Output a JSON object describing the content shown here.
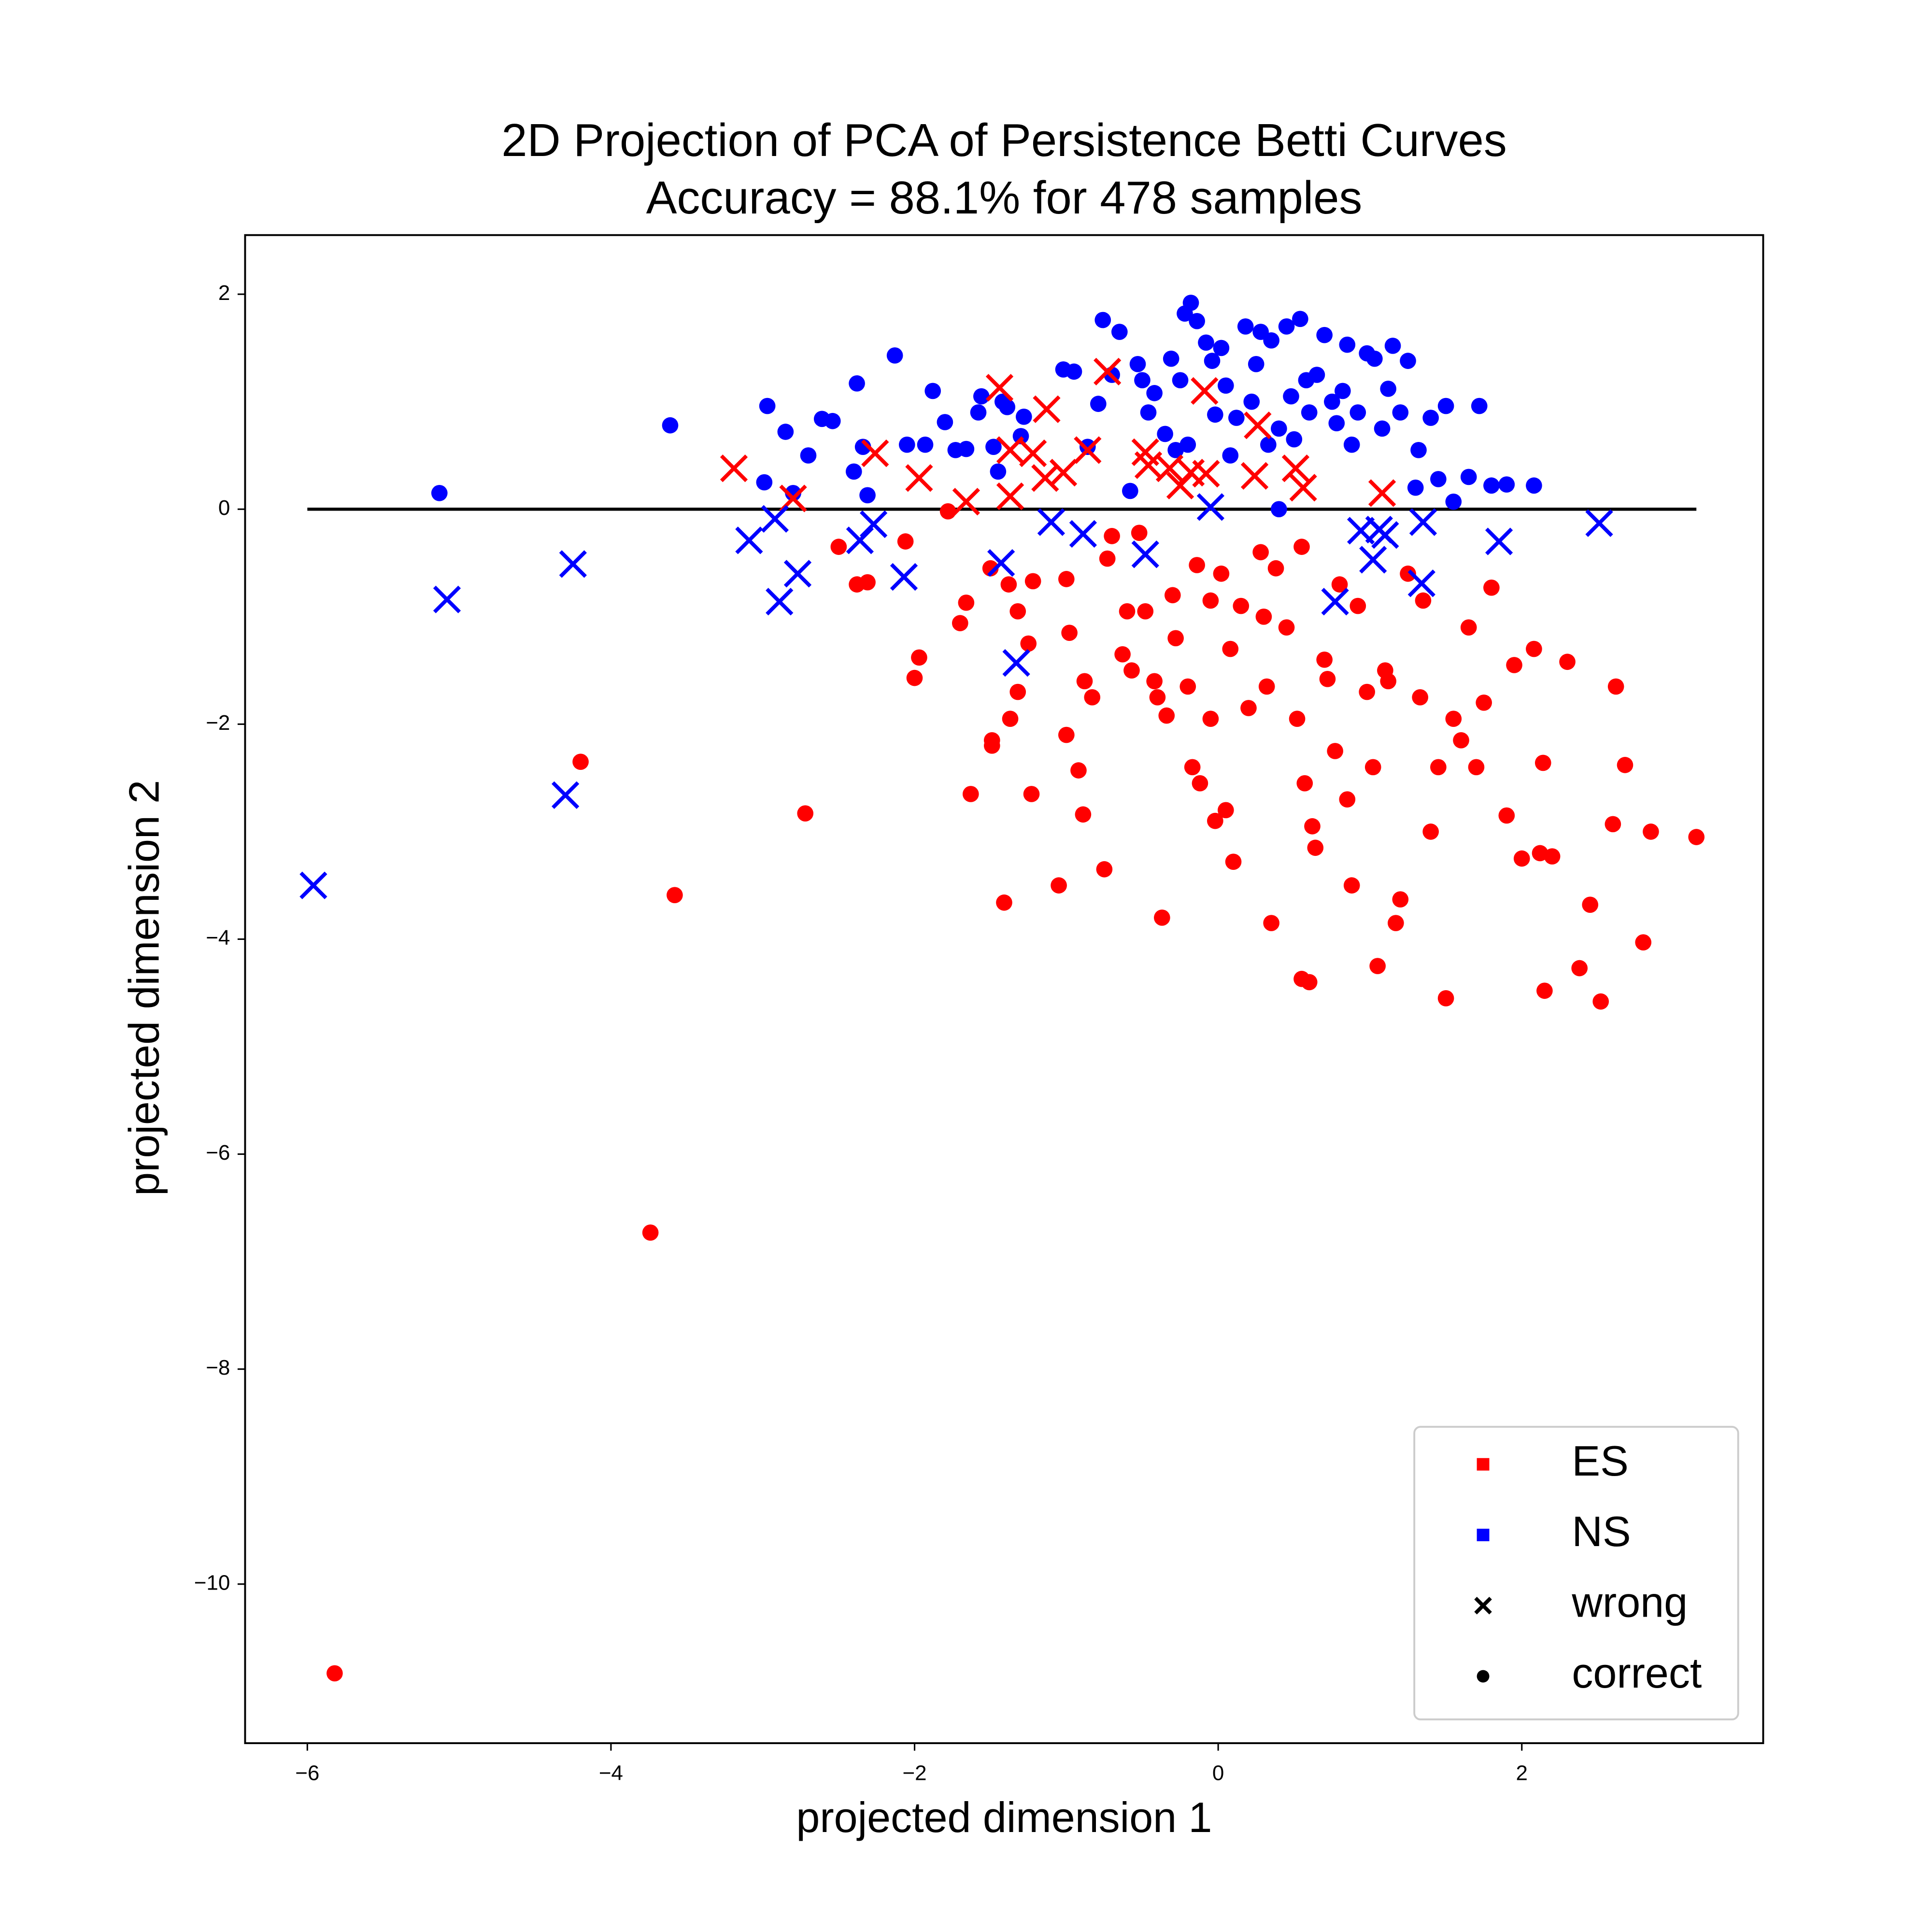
{
  "chart_data": {
    "type": "scatter",
    "title": "2D Projection of PCA of Persistence Betti Curves",
    "subtitle": "Accuracy = 88.1% for 478 samples",
    "x_label": "projected dimension 1",
    "y_label": "projected dimension 2",
    "xlim": [
      -6.41,
      3.59
    ],
    "ylim": [
      -11.48,
      2.55
    ],
    "xticks": [
      {
        "value": -6,
        "label": "−6"
      },
      {
        "value": -4,
        "label": "−4"
      },
      {
        "value": -2,
        "label": "−2"
      },
      0,
      2
    ],
    "yticks": [
      2,
      0,
      {
        "value": -2,
        "label": "−2"
      },
      {
        "value": -4,
        "label": "−4"
      },
      {
        "value": -6,
        "label": "−6"
      },
      {
        "value": -8,
        "label": "−8"
      },
      {
        "value": -10,
        "label": "−10"
      }
    ],
    "reference_line": {
      "y": 0,
      "x": [
        -6,
        3.15
      ],
      "color": "#000000"
    },
    "series": [
      {
        "color": "#ff0000",
        "marker": "o",
        "x": [
          -5.82,
          -3.74,
          -3.58,
          -4.2,
          -2.72,
          -2.5,
          -2.38,
          -2.31,
          -2.06,
          -1.97,
          -2.0,
          -1.78,
          -1.7,
          -1.66,
          -1.63,
          -1.5,
          -1.49,
          -1.49,
          -1.41,
          -1.37,
          -1.38,
          -1.32,
          -1.32,
          -1.25,
          -1.23,
          -1.22,
          -1.05,
          -1.0,
          -1.0,
          -0.98,
          -0.92,
          -0.89,
          -0.88,
          -0.83,
          -0.75,
          -0.73,
          -0.7,
          -0.63,
          -0.6,
          -0.57,
          -0.52,
          -0.48,
          -0.42,
          -0.4,
          -0.37,
          -0.34,
          -0.3,
          -0.28,
          -0.2,
          -0.17,
          -0.14,
          -0.12,
          -0.05,
          -0.02,
          0.02,
          0.05,
          0.08,
          0.1,
          0.15,
          0.2,
          0.28,
          0.32,
          0.35,
          0.38,
          0.45,
          0.52,
          0.55,
          0.57,
          0.6,
          0.62,
          0.64,
          0.7,
          0.77,
          0.8,
          0.85,
          0.88,
          0.92,
          0.98,
          1.02,
          1.05,
          1.1,
          1.17,
          1.2,
          1.25,
          1.33,
          1.4,
          1.45,
          1.5,
          1.55,
          1.6,
          1.65,
          1.7,
          1.75,
          1.8,
          1.9,
          1.95,
          2.0,
          2.08,
          2.12,
          2.15,
          2.2,
          2.3,
          2.38,
          2.45,
          2.52,
          2.6,
          2.62,
          2.68,
          2.8,
          2.85,
          3.15,
          1.35,
          0.55,
          -0.05,
          0.3,
          0.72,
          1.12,
          2.14
        ],
        "values": [
          -10.83,
          -6.73,
          -3.59,
          -2.35,
          -2.83,
          -0.35,
          -0.7,
          -0.68,
          -0.3,
          -1.38,
          -1.57,
          -0.02,
          -1.06,
          -0.87,
          -2.65,
          -0.55,
          -2.15,
          -2.2,
          -3.66,
          -1.95,
          -0.7,
          -0.95,
          -1.7,
          -1.25,
          -2.65,
          -0.67,
          -3.5,
          -0.65,
          -2.1,
          -1.15,
          -2.43,
          -2.84,
          -1.6,
          -1.75,
          -3.35,
          -0.46,
          -0.25,
          -1.35,
          -0.95,
          -1.5,
          -0.22,
          -0.95,
          -1.6,
          -1.75,
          -3.8,
          -1.92,
          -0.8,
          -1.2,
          -1.65,
          -2.4,
          -0.52,
          -2.55,
          -1.95,
          -2.9,
          -0.6,
          -2.8,
          -1.3,
          -3.28,
          -0.9,
          -1.85,
          -0.4,
          -1.65,
          -3.85,
          -0.55,
          -1.1,
          -1.95,
          -4.37,
          -2.55,
          -4.4,
          -2.95,
          -3.15,
          -1.4,
          -2.25,
          -0.7,
          -2.7,
          -3.5,
          -0.9,
          -1.7,
          -2.4,
          -4.25,
          -1.5,
          -3.85,
          -3.63,
          -0.6,
          -1.75,
          -3.0,
          -2.4,
          -4.55,
          -1.95,
          -2.15,
          -1.1,
          -2.4,
          -1.8,
          -0.73,
          -2.85,
          -1.45,
          -3.25,
          -1.3,
          -3.2,
          -4.48,
          -3.23,
          -1.42,
          -4.27,
          -3.68,
          -4.58,
          -2.93,
          -1.65,
          -2.38,
          -4.03,
          -3.0,
          -3.05,
          -0.85,
          -0.35,
          -0.85,
          -1.0,
          -1.58,
          -1.6,
          -2.36
        ]
      },
      {
        "color": "#0000ff",
        "marker": "o",
        "x": [
          -5.13,
          -3.61,
          -2.97,
          -2.99,
          -2.85,
          -2.8,
          -2.7,
          -2.61,
          -2.54,
          -2.4,
          -2.38,
          -2.34,
          -2.31,
          -2.13,
          -2.05,
          -1.93,
          -1.88,
          -1.8,
          -1.73,
          -1.66,
          -1.58,
          -1.56,
          -1.48,
          -1.45,
          -1.42,
          -1.39,
          -1.28,
          -1.3,
          -1.02,
          -0.95,
          -0.86,
          -0.79,
          -0.76,
          -0.65,
          -0.7,
          -0.53,
          -0.5,
          -0.46,
          -0.42,
          -0.35,
          -0.31,
          -0.25,
          -0.22,
          -0.2,
          -0.18,
          -0.14,
          -0.08,
          -0.04,
          -0.02,
          0.02,
          0.05,
          0.08,
          0.12,
          0.18,
          0.22,
          0.25,
          0.28,
          0.33,
          0.35,
          0.4,
          0.45,
          0.48,
          0.5,
          0.54,
          0.58,
          0.6,
          0.65,
          0.7,
          0.75,
          0.78,
          0.82,
          0.85,
          0.88,
          0.92,
          0.98,
          1.03,
          1.08,
          1.12,
          1.15,
          1.2,
          1.25,
          1.3,
          1.32,
          1.4,
          1.45,
          1.5,
          1.55,
          1.65,
          1.72,
          1.8,
          1.9,
          2.08,
          0.4,
          -0.58,
          -0.28
        ],
        "values": [
          0.15,
          0.78,
          0.96,
          0.25,
          0.72,
          0.15,
          0.5,
          0.84,
          0.82,
          0.35,
          1.17,
          0.58,
          0.13,
          1.43,
          0.6,
          0.6,
          1.1,
          0.81,
          0.55,
          0.56,
          0.9,
          1.05,
          0.58,
          0.35,
          1.0,
          0.95,
          0.86,
          0.68,
          1.3,
          1.28,
          0.58,
          0.98,
          1.76,
          1.65,
          1.25,
          1.35,
          1.2,
          0.9,
          1.08,
          0.7,
          1.4,
          1.2,
          1.82,
          0.6,
          1.92,
          1.75,
          1.55,
          1.38,
          0.88,
          1.5,
          1.15,
          0.5,
          0.85,
          1.7,
          1.0,
          1.35,
          1.65,
          0.6,
          1.57,
          0.75,
          1.7,
          1.05,
          0.65,
          1.77,
          1.2,
          0.9,
          1.25,
          1.62,
          1.0,
          0.8,
          1.1,
          1.53,
          0.6,
          0.9,
          1.45,
          1.4,
          0.75,
          1.12,
          1.52,
          0.9,
          1.38,
          0.2,
          0.55,
          0.85,
          0.28,
          0.96,
          0.07,
          0.3,
          0.96,
          0.22,
          0.23,
          0.22,
          0.0,
          0.17,
          0.55
        ]
      },
      {
        "color": "#ff0000",
        "marker": "x",
        "x": [
          -3.19,
          -2.8,
          -2.26,
          -1.97,
          -1.66,
          -1.44,
          -1.37,
          -1.37,
          -1.22,
          -1.13,
          -1.14,
          -1.02,
          -0.86,
          -0.73,
          -0.48,
          -0.46,
          -0.32,
          -0.25,
          -0.18,
          -0.08,
          -0.09,
          0.24,
          0.26,
          0.51,
          0.56,
          1.08
        ],
        "values": [
          0.38,
          0.1,
          0.52,
          0.29,
          0.07,
          1.13,
          0.55,
          0.12,
          0.52,
          0.93,
          0.29,
          0.34,
          0.55,
          1.28,
          0.53,
          0.41,
          0.38,
          0.22,
          0.34,
          0.33,
          1.1,
          0.31,
          0.78,
          0.38,
          0.2,
          0.15
        ]
      },
      {
        "color": "#0000ff",
        "marker": "x",
        "x": [
          -5.96,
          -5.08,
          -4.25,
          -4.3,
          -3.09,
          -2.92,
          -2.89,
          -2.77,
          -2.36,
          -2.27,
          -2.07,
          -1.43,
          -1.33,
          -1.1,
          -0.89,
          -0.48,
          -0.05,
          0.77,
          0.94,
          1.02,
          1.06,
          1.1,
          1.34,
          1.35,
          1.85,
          2.51
        ],
        "values": [
          -3.5,
          -0.84,
          -0.51,
          -2.66,
          -0.29,
          -0.09,
          -0.86,
          -0.6,
          -0.29,
          -0.14,
          -0.63,
          -0.5,
          -1.43,
          -0.12,
          -0.23,
          -0.42,
          0.02,
          -0.86,
          -0.2,
          -0.47,
          -0.19,
          -0.24,
          -0.69,
          -0.12,
          -0.3,
          -0.13
        ]
      }
    ],
    "legend": {
      "position": "lower right",
      "entries": [
        {
          "label": "ES",
          "color": "#ff0000",
          "marker": "s"
        },
        {
          "label": "NS",
          "color": "#0000ff",
          "marker": "s"
        },
        {
          "label": "wrong",
          "color": "#000000",
          "marker": "x"
        },
        {
          "label": "correct",
          "color": "#000000",
          "marker": "o"
        }
      ]
    }
  }
}
